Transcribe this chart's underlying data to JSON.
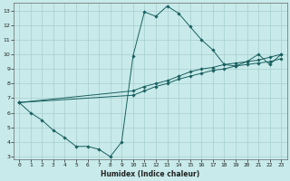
{
  "title": "",
  "xlabel": "Humidex (Indice chaleur)",
  "ylabel": "",
  "bg_color": "#c8eaea",
  "grid_color": "#a8cece",
  "line_color": "#1a6060",
  "xlim": [
    -0.5,
    23.5
  ],
  "ylim": [
    2.8,
    13.5
  ],
  "xticks": [
    0,
    1,
    2,
    3,
    4,
    5,
    6,
    7,
    8,
    9,
    10,
    11,
    12,
    13,
    14,
    15,
    16,
    17,
    18,
    19,
    20,
    21,
    22,
    23
  ],
  "yticks": [
    3,
    4,
    5,
    6,
    7,
    8,
    9,
    10,
    11,
    12,
    13
  ],
  "line1_x": [
    0,
    1,
    2,
    3,
    4,
    5,
    6,
    7,
    8,
    9,
    10,
    11,
    12,
    13,
    14,
    15,
    16,
    17,
    18,
    19,
    20,
    21,
    22,
    23
  ],
  "line1_y": [
    6.7,
    6.0,
    5.5,
    4.8,
    4.3,
    3.7,
    3.7,
    3.5,
    3.0,
    4.0,
    9.9,
    12.9,
    12.6,
    13.3,
    12.8,
    11.9,
    11.0,
    10.3,
    9.3,
    9.2,
    9.5,
    10.0,
    9.3,
    10.0
  ],
  "line2_x": [
    0,
    10,
    11,
    12,
    13,
    14,
    15,
    16,
    17,
    18,
    19,
    20,
    21,
    22,
    23
  ],
  "line2_y": [
    6.7,
    7.2,
    7.5,
    7.8,
    8.0,
    8.3,
    8.5,
    8.7,
    8.9,
    9.0,
    9.2,
    9.3,
    9.4,
    9.5,
    9.7
  ],
  "line3_x": [
    0,
    10,
    11,
    12,
    13,
    14,
    15,
    16,
    17,
    18,
    19,
    20,
    21,
    22,
    23
  ],
  "line3_y": [
    6.7,
    7.5,
    7.8,
    8.0,
    8.2,
    8.5,
    8.8,
    9.0,
    9.1,
    9.3,
    9.4,
    9.5,
    9.6,
    9.8,
    10.0
  ]
}
